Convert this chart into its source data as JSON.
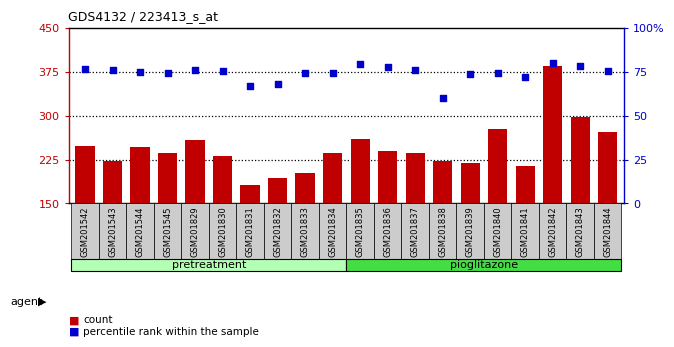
{
  "title": "GDS4132 / 223413_s_at",
  "categories": [
    "GSM201542",
    "GSM201543",
    "GSM201544",
    "GSM201545",
    "GSM201829",
    "GSM201830",
    "GSM201831",
    "GSM201832",
    "GSM201833",
    "GSM201834",
    "GSM201835",
    "GSM201836",
    "GSM201837",
    "GSM201838",
    "GSM201839",
    "GSM201840",
    "GSM201841",
    "GSM201842",
    "GSM201843",
    "GSM201844"
  ],
  "bar_values": [
    248,
    222,
    247,
    236,
    258,
    232,
    182,
    193,
    202,
    237,
    260,
    240,
    237,
    222,
    220,
    278,
    215,
    385,
    298,
    272
  ],
  "bar_color": "#c00000",
  "dot_values_left_scale": [
    380,
    378,
    375,
    374,
    378,
    376,
    352,
    355,
    373,
    374,
    388,
    383,
    378,
    330,
    372,
    374,
    367,
    390,
    385,
    376
  ],
  "dot_color": "#0000cc",
  "ylim_left": [
    150,
    450
  ],
  "ylim_right": [
    0,
    100
  ],
  "yticks_left": [
    150,
    225,
    300,
    375,
    450
  ],
  "yticks_right": [
    0,
    25,
    50,
    75,
    100
  ],
  "right_ytick_labels": [
    "0",
    "25",
    "50",
    "75",
    "100%"
  ],
  "hlines": [
    225,
    300,
    375
  ],
  "pretreatment_count": 10,
  "pioglitazone_count": 10,
  "group_labels": [
    "pretreatment",
    "pioglitazone"
  ],
  "pretreatment_color": "#b3ffb3",
  "pioglitazone_color": "#44dd44",
  "agent_label": "agent",
  "legend_count_label": "count",
  "legend_pct_label": "percentile rank within the sample",
  "bar_width": 0.7,
  "xlabel_box_color": "#cccccc",
  "fig_bg": "#ffffff"
}
